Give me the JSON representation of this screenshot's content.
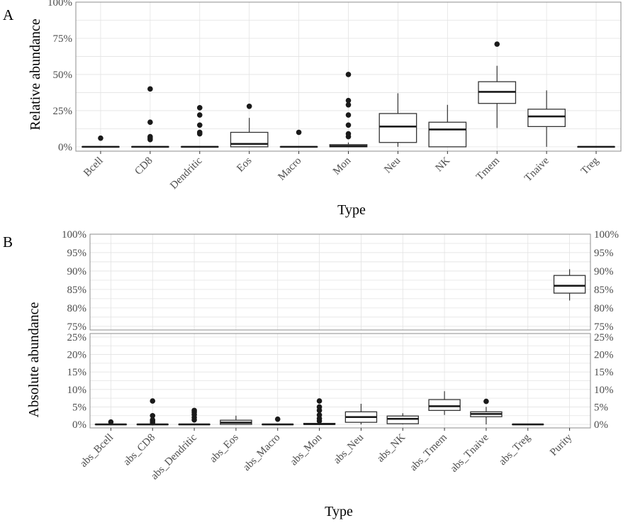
{
  "chart_data": [
    {
      "id": "A",
      "type": "box",
      "panel_label": "A",
      "xlabel": "Type",
      "ylabel": "Relative abundance",
      "ylim": [
        -0.03,
        1.0
      ],
      "yticks": [
        0,
        0.25,
        0.5,
        0.75,
        1.0
      ],
      "ytick_labels": [
        "0%",
        "25%",
        "50%",
        "75%",
        "100%"
      ],
      "categories": [
        "Bcell",
        "CD8",
        "Dendritic",
        "Eos",
        "Macro",
        "Mon",
        "Neu",
        "NK",
        "Tmem",
        "Tnaive",
        "Treg"
      ],
      "boxes": [
        {
          "min": 0,
          "q1": 0,
          "median": 0,
          "q3": 0,
          "max": 0,
          "outliers": [
            0.06
          ]
        },
        {
          "min": 0,
          "q1": 0,
          "median": 0,
          "q3": 0,
          "max": 0,
          "outliers": [
            0.05,
            0.06,
            0.07,
            0.17,
            0.4
          ]
        },
        {
          "min": 0,
          "q1": 0,
          "median": 0,
          "q3": 0,
          "max": 0,
          "outliers": [
            0.09,
            0.1,
            0.15,
            0.22,
            0.27
          ]
        },
        {
          "min": 0,
          "q1": 0,
          "median": 0.02,
          "q3": 0.1,
          "max": 0.2,
          "outliers": [
            0.28
          ]
        },
        {
          "min": 0,
          "q1": 0,
          "median": 0,
          "q3": 0,
          "max": 0,
          "outliers": [
            0.1
          ]
        },
        {
          "min": 0,
          "q1": 0,
          "median": 0.005,
          "q3": 0.015,
          "max": 0.03,
          "outliers": [
            0.07,
            0.09,
            0.15,
            0.22,
            0.29,
            0.32,
            0.5
          ]
        },
        {
          "min": 0,
          "q1": 0.03,
          "median": 0.14,
          "q3": 0.23,
          "max": 0.37,
          "outliers": []
        },
        {
          "min": 0,
          "q1": 0,
          "median": 0.12,
          "q3": 0.17,
          "max": 0.29,
          "outliers": []
        },
        {
          "min": 0.13,
          "q1": 0.3,
          "median": 0.38,
          "q3": 0.45,
          "max": 0.56,
          "outliers": [
            0.71
          ]
        },
        {
          "min": 0,
          "q1": 0.14,
          "median": 0.21,
          "q3": 0.26,
          "max": 0.39,
          "outliers": []
        },
        {
          "min": 0,
          "q1": 0,
          "median": 0,
          "q3": 0,
          "max": 0,
          "outliers": []
        }
      ]
    },
    {
      "id": "B",
      "type": "box",
      "panel_label": "B",
      "xlabel": "Type",
      "ylabel": "Absolute abundance",
      "broken_axis": true,
      "upper_ylim": [
        0.74,
        1.0
      ],
      "upper_yticks": [
        0.75,
        0.8,
        0.85,
        0.9,
        0.95,
        1.0
      ],
      "upper_ytick_labels": [
        "75%",
        "80%",
        "85%",
        "90%",
        "95%",
        "100%"
      ],
      "lower_ylim": [
        -0.01,
        0.26
      ],
      "lower_yticks": [
        0,
        0.05,
        0.1,
        0.15,
        0.2,
        0.25
      ],
      "lower_ytick_labels": [
        "0%",
        "5%",
        "10%",
        "15%",
        "20%",
        "25%"
      ],
      "categories": [
        "abs_Bcell",
        "abs_CD8",
        "abs_Dendritic",
        "abs_Eos",
        "abs_Macro",
        "abs_Mon",
        "abs_Neu",
        "abs_NK",
        "abs_Tmem",
        "abs_Tnaive",
        "abs_Treg",
        "Purity"
      ],
      "boxes": [
        {
          "min": 0,
          "q1": 0,
          "median": 0,
          "q3": 0,
          "max": 0,
          "outliers": [
            0.007
          ]
        },
        {
          "min": 0,
          "q1": 0,
          "median": 0,
          "q3": 0,
          "max": 0,
          "outliers": [
            0.005,
            0.01,
            0.013,
            0.025,
            0.067
          ]
        },
        {
          "min": 0,
          "q1": 0,
          "median": 0,
          "q3": 0,
          "max": 0,
          "outliers": [
            0.013,
            0.02,
            0.028,
            0.035,
            0.04
          ]
        },
        {
          "min": 0,
          "q1": 0,
          "median": 0.005,
          "q3": 0.012,
          "max": 0.025,
          "outliers": []
        },
        {
          "min": 0,
          "q1": 0,
          "median": 0,
          "q3": 0,
          "max": 0,
          "outliers": [
            0.015
          ]
        },
        {
          "min": 0,
          "q1": 0,
          "median": 0.001,
          "q3": 0.003,
          "max": 0.005,
          "outliers": [
            0.01,
            0.017,
            0.027,
            0.04,
            0.05,
            0.067
          ]
        },
        {
          "min": 0,
          "q1": 0.006,
          "median": 0.021,
          "q3": 0.036,
          "max": 0.059,
          "outliers": []
        },
        {
          "min": 0,
          "q1": 0.002,
          "median": 0.016,
          "q3": 0.024,
          "max": 0.032,
          "outliers": []
        },
        {
          "min": 0.027,
          "q1": 0.04,
          "median": 0.052,
          "q3": 0.071,
          "max": 0.095,
          "outliers": []
        },
        {
          "min": 0,
          "q1": 0.022,
          "median": 0.03,
          "q3": 0.036,
          "max": 0.05,
          "outliers": [
            0.066
          ]
        },
        {
          "min": 0,
          "q1": 0,
          "median": 0,
          "q3": 0,
          "max": 0,
          "outliers": []
        },
        {
          "min": 0.82,
          "q1": 0.84,
          "median": 0.86,
          "q3": 0.888,
          "max": 0.905,
          "outliers": []
        }
      ]
    }
  ]
}
